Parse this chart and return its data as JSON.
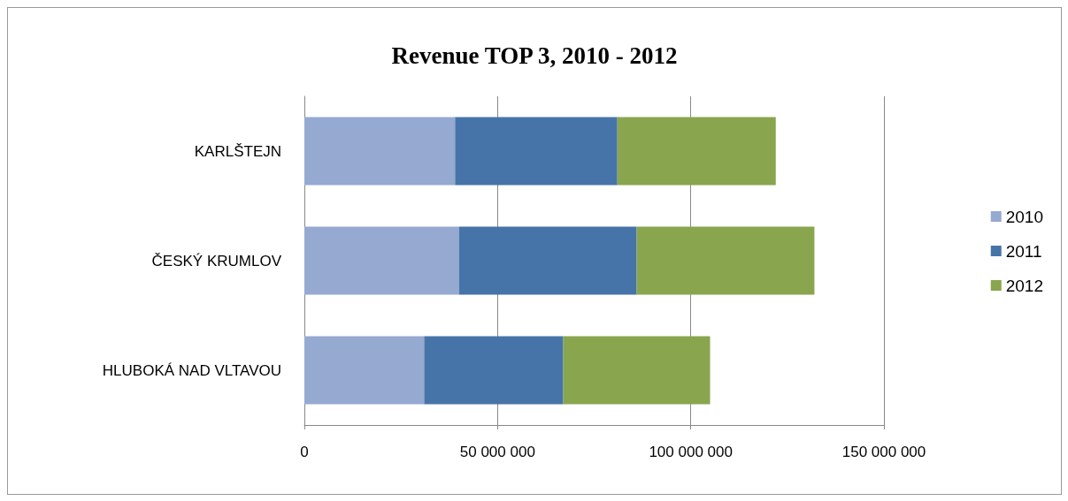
{
  "chart_data": {
    "type": "bar",
    "orientation": "horizontal",
    "stacked": true,
    "title": "Revenue TOP 3, 2010 - 2012",
    "categories": [
      "KARLŠTEJN",
      "ČESKÝ KRUMLOV",
      "HLUBOKÁ NAD VLTAVOU"
    ],
    "series": [
      {
        "name": "2010",
        "color": "#95a9d1",
        "values": [
          39000000,
          40000000,
          31000000
        ]
      },
      {
        "name": "2011",
        "color": "#4674a8",
        "values": [
          42000000,
          46000000,
          36000000
        ]
      },
      {
        "name": "2012",
        "color": "#89a54e",
        "values": [
          41000000,
          46000000,
          38000000
        ]
      }
    ],
    "xlim": [
      0,
      150000000
    ],
    "xticks": [
      {
        "value": 0,
        "label": "0"
      },
      {
        "value": 50000000,
        "label": "50 000 000"
      },
      {
        "value": 100000000,
        "label": "100 000 000"
      },
      {
        "value": 150000000,
        "label": "150 000 000"
      }
    ],
    "grid": "x",
    "legend": "right"
  }
}
